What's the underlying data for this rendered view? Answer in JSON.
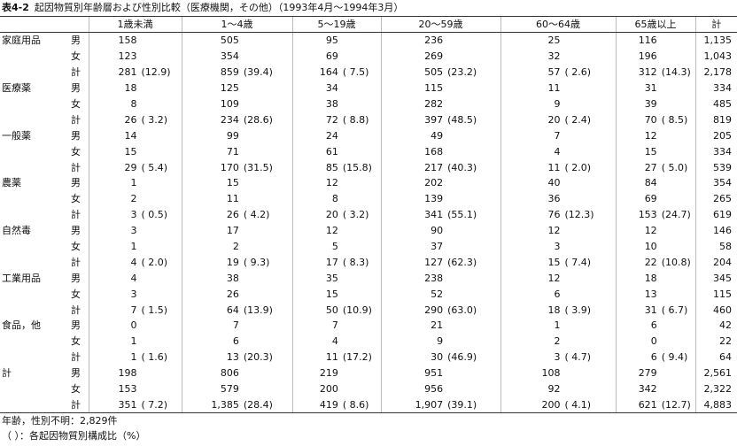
{
  "title": {
    "label": "表4-2",
    "text": "起因物質別年齢層および性別比較（医療機関，その他）（1993年4月～1994年3月）"
  },
  "table": {
    "header": [
      "1歳未満",
      "1～4歳",
      "5～19歳",
      "20～59歳",
      "60～64歳",
      "65歳以上",
      "計"
    ],
    "groups": [
      {
        "name": "家庭用品",
        "rows": [
          {
            "sex": "男",
            "cells": [
              [
                "158"
              ],
              [
                "505"
              ],
              [
                "95"
              ],
              [
                "236"
              ],
              [
                "25"
              ],
              [
                "116"
              ],
              [
                "1,135"
              ]
            ]
          },
          {
            "sex": "女",
            "cells": [
              [
                "123"
              ],
              [
                "354"
              ],
              [
                "69"
              ],
              [
                "269"
              ],
              [
                "32"
              ],
              [
                "196"
              ],
              [
                "1,043"
              ]
            ]
          },
          {
            "sex": "計",
            "cells": [
              [
                "281",
                "(12.9)"
              ],
              [
                "859",
                "(39.4)"
              ],
              [
                "164",
                "( 7.5)"
              ],
              [
                "505",
                "(23.2)"
              ],
              [
                "57",
                "( 2.6)"
              ],
              [
                "312",
                "(14.3)"
              ],
              [
                "2,178"
              ]
            ]
          }
        ]
      },
      {
        "name": "医療薬",
        "rows": [
          {
            "sex": "男",
            "cells": [
              [
                "18"
              ],
              [
                "125"
              ],
              [
                "34"
              ],
              [
                "115"
              ],
              [
                "11"
              ],
              [
                "31"
              ],
              [
                "334"
              ]
            ]
          },
          {
            "sex": "女",
            "cells": [
              [
                "8"
              ],
              [
                "109"
              ],
              [
                "38"
              ],
              [
                "282"
              ],
              [
                "9"
              ],
              [
                "39"
              ],
              [
                "485"
              ]
            ]
          },
          {
            "sex": "計",
            "cells": [
              [
                "26",
                "( 3.2)"
              ],
              [
                "234",
                "(28.6)"
              ],
              [
                "72",
                "( 8.8)"
              ],
              [
                "397",
                "(48.5)"
              ],
              [
                "20",
                "( 2.4)"
              ],
              [
                "70",
                "( 8.5)"
              ],
              [
                "819"
              ]
            ]
          }
        ]
      },
      {
        "name": "一般薬",
        "rows": [
          {
            "sex": "男",
            "cells": [
              [
                "14"
              ],
              [
                "99"
              ],
              [
                "24"
              ],
              [
                "49"
              ],
              [
                "7"
              ],
              [
                "12"
              ],
              [
                "205"
              ]
            ]
          },
          {
            "sex": "女",
            "cells": [
              [
                "15"
              ],
              [
                "71"
              ],
              [
                "61"
              ],
              [
                "168"
              ],
              [
                "4"
              ],
              [
                "15"
              ],
              [
                "334"
              ]
            ]
          },
          {
            "sex": "計",
            "cells": [
              [
                "29",
                "( 5.4)"
              ],
              [
                "170",
                "(31.5)"
              ],
              [
                "85",
                "(15.8)"
              ],
              [
                "217",
                "(40.3)"
              ],
              [
                "11",
                "( 2.0)"
              ],
              [
                "27",
                "( 5.0)"
              ],
              [
                "539"
              ]
            ]
          }
        ]
      },
      {
        "name": "農薬",
        "rows": [
          {
            "sex": "男",
            "cells": [
              [
                "1"
              ],
              [
                "15"
              ],
              [
                "12"
              ],
              [
                "202"
              ],
              [
                "40"
              ],
              [
                "84"
              ],
              [
                "354"
              ]
            ]
          },
          {
            "sex": "女",
            "cells": [
              [
                "2"
              ],
              [
                "11"
              ],
              [
                "8"
              ],
              [
                "139"
              ],
              [
                "36"
              ],
              [
                "69"
              ],
              [
                "265"
              ]
            ]
          },
          {
            "sex": "計",
            "cells": [
              [
                "3",
                "( 0.5)"
              ],
              [
                "26",
                "( 4.2)"
              ],
              [
                "20",
                "( 3.2)"
              ],
              [
                "341",
                "(55.1)"
              ],
              [
                "76",
                "(12.3)"
              ],
              [
                "153",
                "(24.7)"
              ],
              [
                "619"
              ]
            ]
          }
        ]
      },
      {
        "name": "自然毒",
        "rows": [
          {
            "sex": "男",
            "cells": [
              [
                "3"
              ],
              [
                "17"
              ],
              [
                "12"
              ],
              [
                "90"
              ],
              [
                "12"
              ],
              [
                "12"
              ],
              [
                "146"
              ]
            ]
          },
          {
            "sex": "女",
            "cells": [
              [
                "1"
              ],
              [
                "2"
              ],
              [
                "5"
              ],
              [
                "37"
              ],
              [
                "3"
              ],
              [
                "10"
              ],
              [
                "58"
              ]
            ]
          },
          {
            "sex": "計",
            "cells": [
              [
                "4",
                "( 2.0)"
              ],
              [
                "19",
                "( 9.3)"
              ],
              [
                "17",
                "( 8.3)"
              ],
              [
                "127",
                "(62.3)"
              ],
              [
                "15",
                "( 7.4)"
              ],
              [
                "22",
                "(10.8)"
              ],
              [
                "204"
              ]
            ]
          }
        ]
      },
      {
        "name": "工業用品",
        "rows": [
          {
            "sex": "男",
            "cells": [
              [
                "4"
              ],
              [
                "38"
              ],
              [
                "35"
              ],
              [
                "238"
              ],
              [
                "12"
              ],
              [
                "18"
              ],
              [
                "345"
              ]
            ]
          },
          {
            "sex": "女",
            "cells": [
              [
                "3"
              ],
              [
                "26"
              ],
              [
                "15"
              ],
              [
                "52"
              ],
              [
                "6"
              ],
              [
                "13"
              ],
              [
                "115"
              ]
            ]
          },
          {
            "sex": "計",
            "cells": [
              [
                "7",
                "( 1.5)"
              ],
              [
                "64",
                "(13.9)"
              ],
              [
                "50",
                "(10.9)"
              ],
              [
                "290",
                "(63.0)"
              ],
              [
                "18",
                "( 3.9)"
              ],
              [
                "31",
                "( 6.7)"
              ],
              [
                "460"
              ]
            ]
          }
        ]
      },
      {
        "name": "食品，他",
        "rows": [
          {
            "sex": "男",
            "cells": [
              [
                "0"
              ],
              [
                "7"
              ],
              [
                "7"
              ],
              [
                "21"
              ],
              [
                "1"
              ],
              [
                "6"
              ],
              [
                "42"
              ]
            ]
          },
          {
            "sex": "女",
            "cells": [
              [
                "1"
              ],
              [
                "6"
              ],
              [
                "4"
              ],
              [
                "9"
              ],
              [
                "2"
              ],
              [
                "0"
              ],
              [
                "22"
              ]
            ]
          },
          {
            "sex": "計",
            "cells": [
              [
                "1",
                "( 1.6)"
              ],
              [
                "13",
                "(20.3)"
              ],
              [
                "11",
                "(17.2)"
              ],
              [
                "30",
                "(46.9)"
              ],
              [
                "3",
                "( 4.7)"
              ],
              [
                "6",
                "( 9.4)"
              ],
              [
                "64"
              ]
            ]
          }
        ]
      },
      {
        "name": "計",
        "rows": [
          {
            "sex": "男",
            "cells": [
              [
                "198"
              ],
              [
                "806"
              ],
              [
                "219"
              ],
              [
                "951"
              ],
              [
                "108"
              ],
              [
                "279"
              ],
              [
                "2,561"
              ]
            ]
          },
          {
            "sex": "女",
            "cells": [
              [
                "153"
              ],
              [
                "579"
              ],
              [
                "200"
              ],
              [
                "956"
              ],
              [
                "92"
              ],
              [
                "342"
              ],
              [
                "2,322"
              ]
            ]
          },
          {
            "sex": "計",
            "cells": [
              [
                "351",
                "( 7.2)"
              ],
              [
                "1,385",
                "(28.4)"
              ],
              [
                "419",
                "( 8.6)"
              ],
              [
                "1,907",
                "(39.1)"
              ],
              [
                "200",
                "( 4.1)"
              ],
              [
                "621",
                "(12.7)"
              ],
              [
                "4,883"
              ]
            ]
          }
        ]
      }
    ]
  },
  "notes": [
    "年齢，性別不明：2,829件",
    "（ ）：各起因物質別構成比（%）"
  ]
}
